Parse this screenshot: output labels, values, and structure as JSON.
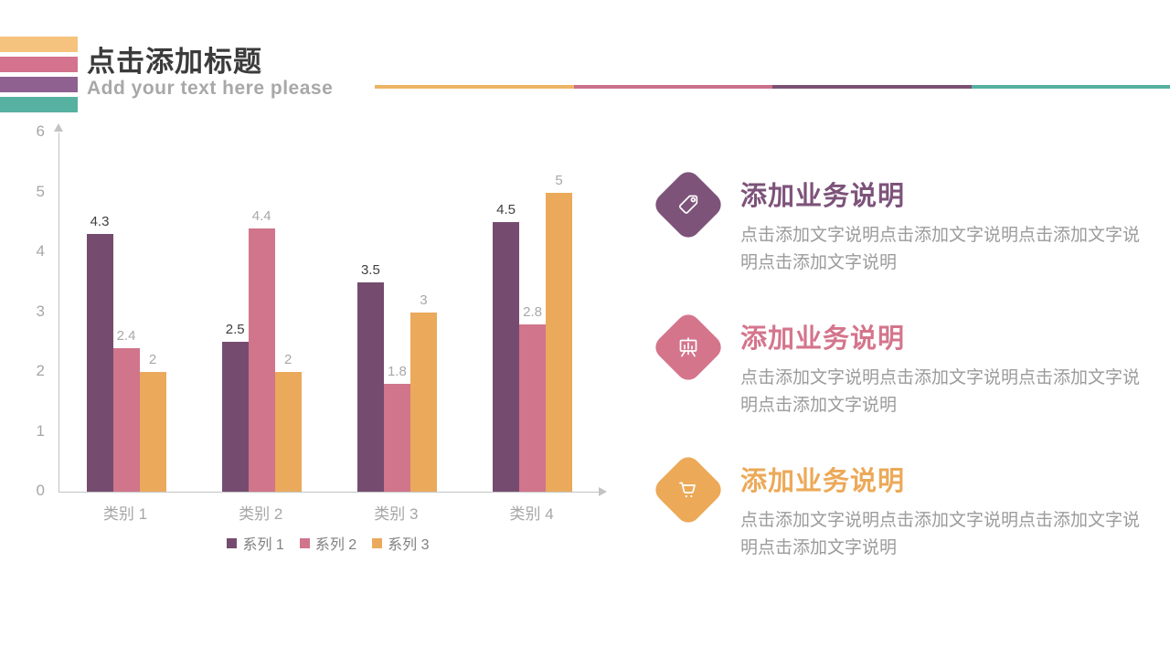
{
  "header": {
    "title": "点击添加标题",
    "subtitle": "Add your text here please",
    "stripe_colors": [
      "#F6C37E",
      "#D3738D",
      "#8F6190",
      "#57B1A1"
    ],
    "divider_colors": [
      "#EDB466",
      "#C9708A",
      "#7B5173",
      "#55B09F"
    ]
  },
  "chart_data": {
    "type": "bar",
    "categories": [
      "类别 1",
      "类别 2",
      "类别 3",
      "类别 4"
    ],
    "series": [
      {
        "name": "系列 1",
        "color": "#754C6F",
        "values": [
          4.3,
          2.5,
          3.5,
          4.5
        ]
      },
      {
        "name": "系列 2",
        "color": "#D0758B",
        "values": [
          2.4,
          4.4,
          1.8,
          2.8
        ]
      },
      {
        "name": "系列 3",
        "color": "#EBA95C",
        "values": [
          2,
          2,
          3,
          5
        ]
      }
    ],
    "title": "",
    "xlabel": "",
    "ylabel": "",
    "ylim": [
      0,
      6
    ],
    "yticks": [
      0,
      1,
      2,
      3,
      4,
      5,
      6
    ],
    "grid": false,
    "legend_position": "bottom",
    "value_labels": true,
    "value_label_colors": {
      "series1": "#404040",
      "others": "#a8a8a8"
    }
  },
  "blocks": [
    {
      "heading": "添加业务说明",
      "body": "点击添加文字说明点击添加文字说明点击添加文字说明点击添加文字说明",
      "color": "#7D537A",
      "icon": "tag-icon"
    },
    {
      "heading": "添加业务说明",
      "body": "点击添加文字说明点击添加文字说明点击添加文字说明点击添加文字说明",
      "color": "#D4758C",
      "icon": "easel-icon"
    },
    {
      "heading": "添加业务说明",
      "body": "点击添加文字说明点击添加文字说明点击添加文字说明点击添加文字说明",
      "color": "#ECA958",
      "icon": "cart-icon"
    }
  ]
}
